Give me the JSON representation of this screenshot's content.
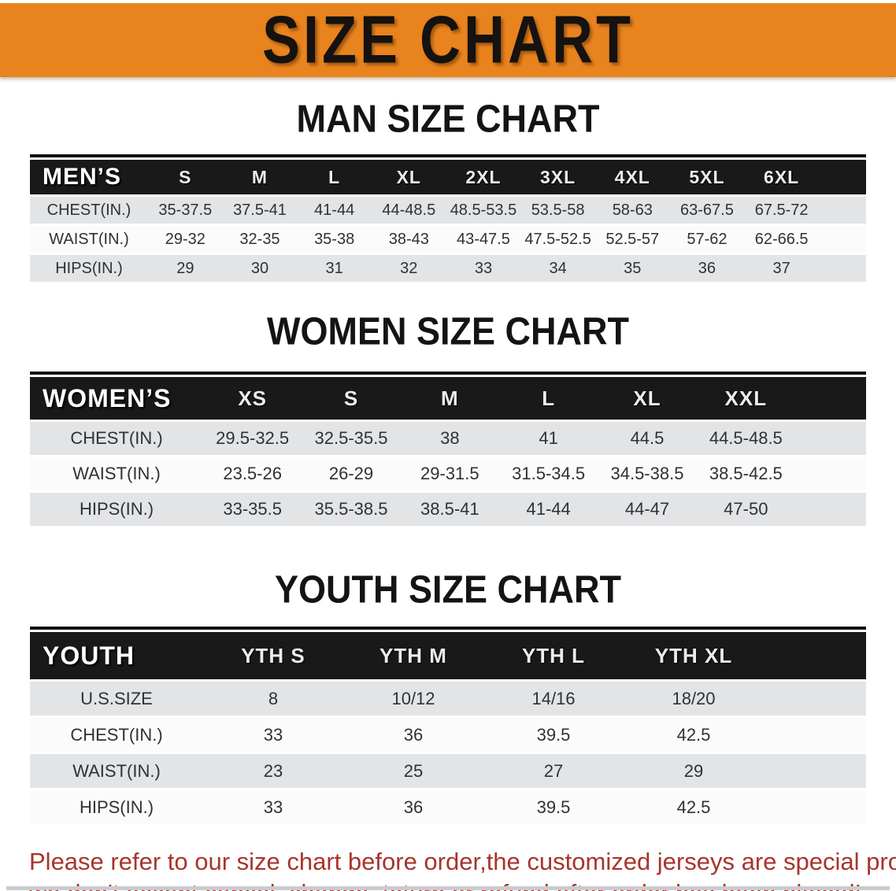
{
  "banner": {
    "title": "SIZE CHART",
    "bg_color": "#E8831E",
    "text_color": "#151210"
  },
  "colors": {
    "table_header_bg": "#191919",
    "row_gray": "#E2E4E6",
    "row_white": "#FBFBFC",
    "footer_text": "#A8342C"
  },
  "sections": [
    {
      "heading": "MAN SIZE CHART",
      "table": {
        "header_label": "MEN’S",
        "sizes": [
          "S",
          "M",
          "L",
          "XL",
          "2XL",
          "3XL",
          "4XL",
          "5XL",
          "6XL"
        ],
        "rows": [
          {
            "label": "CHEST(IN.)",
            "values": [
              "35-37.5",
              "37.5-41",
              "41-44",
              "44-48.5",
              "48.5-53.5",
              "53.5-58",
              "58-63",
              "63-67.5",
              "67.5-72"
            ]
          },
          {
            "label": "WAIST(IN.)",
            "values": [
              "29-32",
              "32-35",
              "35-38",
              "38-43",
              "43-47.5",
              "47.5-52.5",
              "52.5-57",
              "57-62",
              "62-66.5"
            ]
          },
          {
            "label": "HIPS(IN.)",
            "values": [
              "29",
              "30",
              "31",
              "32",
              "33",
              "34",
              "35",
              "36",
              "37"
            ]
          }
        ]
      }
    },
    {
      "heading": "WOMEN SIZE CHART",
      "table": {
        "header_label": "WOMEN’S",
        "sizes": [
          "XS",
          "S",
          "M",
          "L",
          "XL",
          "XXL"
        ],
        "rows": [
          {
            "label": "CHEST(IN.)",
            "values": [
              "29.5-32.5",
              "32.5-35.5",
              "38",
              "41",
              "44.5",
              "44.5-48.5"
            ]
          },
          {
            "label": "WAIST(IN.)",
            "values": [
              "23.5-26",
              "26-29",
              "29-31.5",
              "31.5-34.5",
              "34.5-38.5",
              "38.5-42.5"
            ]
          },
          {
            "label": "HIPS(IN.)",
            "values": [
              "33-35.5",
              "35.5-38.5",
              "38.5-41",
              "41-44",
              "44-47",
              "47-50"
            ]
          }
        ]
      }
    },
    {
      "heading": "YOUTH SIZE CHART",
      "table": {
        "header_label": "YOUTH",
        "sizes": [
          "YTH S",
          "YTH M",
          "YTH L",
          "YTH XL"
        ],
        "rows": [
          {
            "label": "U.S.SIZE",
            "values": [
              "8",
              "10/12",
              "14/16",
              "18/20"
            ]
          },
          {
            "label": "CHEST(IN.)",
            "values": [
              "33",
              "36",
              "39.5",
              "42.5"
            ]
          },
          {
            "label": "WAIST(IN.)",
            "values": [
              "23",
              "25",
              "27",
              "29"
            ]
          },
          {
            "label": "HIPS(IN.)",
            "values": [
              "33",
              "36",
              "39.5",
              "42.5"
            ]
          }
        ]
      }
    }
  ],
  "footer": {
    "line1": "Please refer to our size chart before order,the customized jerseys are special products,",
    "line2": "we don't accept cancel, change, teturn or refund after order has been placed!"
  }
}
